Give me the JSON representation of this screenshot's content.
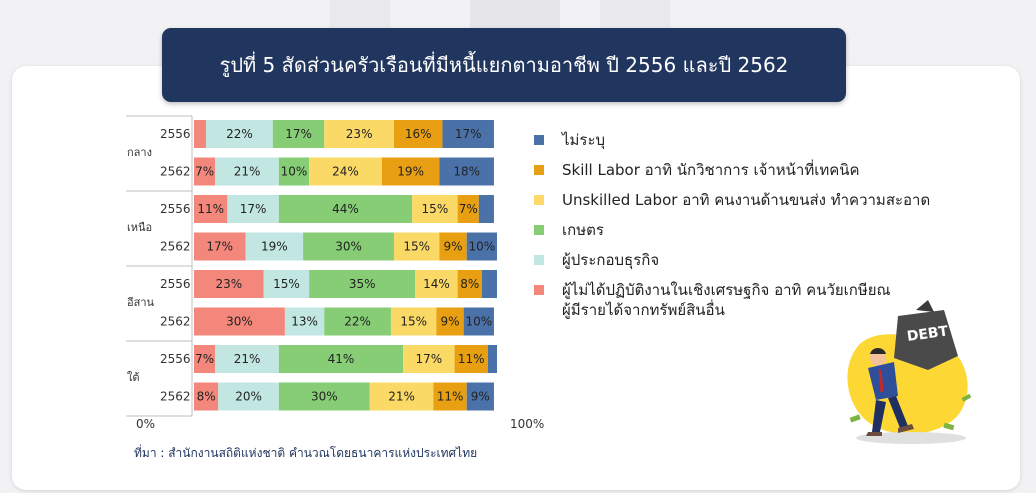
{
  "title": "รูปที่ 5 สัดส่วนครัวเรือนที่มีหนี้แยกตามอาชีพ ปี 2556 และปี 2562",
  "source": "ที่มา : สำนักงานสถิติแห่งชาติ คำนวณโดยธนาคารแห่งประเทศไทย",
  "chart_data": {
    "type": "bar",
    "orientation": "horizontal-stacked-100",
    "xlim": [
      0,
      100
    ],
    "x_tick_labels": [
      "0%",
      "100%"
    ],
    "groups": [
      {
        "name": "กลาง",
        "rows": [
          {
            "year": "2556",
            "values": [
              4,
              22,
              17,
              23,
              16,
              17
            ],
            "labels": [
              "",
              "22%",
              "17%",
              "23%",
              "16%",
              "17%"
            ]
          },
          {
            "year": "2562",
            "values": [
              7,
              21,
              10,
              24,
              19,
              18
            ],
            "labels": [
              "7%",
              "21%",
              "10%",
              "24%",
              "19%",
              "18%"
            ]
          }
        ]
      },
      {
        "name": "เหนือ",
        "rows": [
          {
            "year": "2556",
            "values": [
              11,
              17,
              44,
              15,
              7,
              5
            ],
            "labels": [
              "11%",
              "17%",
              "44%",
              "15%",
              "7%",
              ""
            ]
          },
          {
            "year": "2562",
            "values": [
              17,
              19,
              30,
              15,
              9,
              10
            ],
            "labels": [
              "17%",
              "19%",
              "30%",
              "15%",
              "9%",
              "10%"
            ]
          }
        ]
      },
      {
        "name": "อีสาน",
        "rows": [
          {
            "year": "2556",
            "values": [
              23,
              15,
              35,
              14,
              8,
              5
            ],
            "labels": [
              "23%",
              "15%",
              "35%",
              "14%",
              "8%",
              ""
            ]
          },
          {
            "year": "2562",
            "values": [
              30,
              13,
              22,
              15,
              9,
              10
            ],
            "labels": [
              "30%",
              "13%",
              "22%",
              "15%",
              "9%",
              "10%"
            ]
          }
        ]
      },
      {
        "name": "ใต้",
        "rows": [
          {
            "year": "2556",
            "values": [
              7,
              21,
              41,
              17,
              11,
              3
            ],
            "labels": [
              "7%",
              "21%",
              "41%",
              "17%",
              "11%",
              ""
            ]
          },
          {
            "year": "2562",
            "values": [
              8,
              20,
              30,
              21,
              11,
              9
            ],
            "labels": [
              "8%",
              "20%",
              "30%",
              "21%",
              "11%",
              "9%"
            ]
          }
        ]
      }
    ],
    "series_colors": [
      "#f4877b",
      "#c2e7e2",
      "#86cd76",
      "#fbd966",
      "#e8a012",
      "#4b72a8"
    ],
    "legend": [
      {
        "label": "ไม่ระบุ",
        "color": "#4b72a8"
      },
      {
        "label": "Skill Labor อาทิ นักวิชาการ เจ้าหน้าที่เทคนิค",
        "color": "#e8a012"
      },
      {
        "label": "Unskilled Labor อาทิ คนงานด้านขนส่ง ทำความสะอาด",
        "color": "#fbd966"
      },
      {
        "label": "เกษตร",
        "color": "#86cd76"
      },
      {
        "label": "ผู้ประกอบธุรกิจ",
        "color": "#c2e7e2"
      },
      {
        "label": "ผู้ไม่ได้ปฏิบัติงานในเชิงเศรษฐกิจ อาทิ  คนวัยเกษียณ",
        "label2": "ผู้มีรายได้จากทรัพย์สินอื่น",
        "color": "#f4877b"
      }
    ],
    "legend_placement": "right",
    "grid": false
  },
  "illustration": {
    "bag_text": "DEBT",
    "icon": "man-carrying-debt-bag-icon"
  }
}
